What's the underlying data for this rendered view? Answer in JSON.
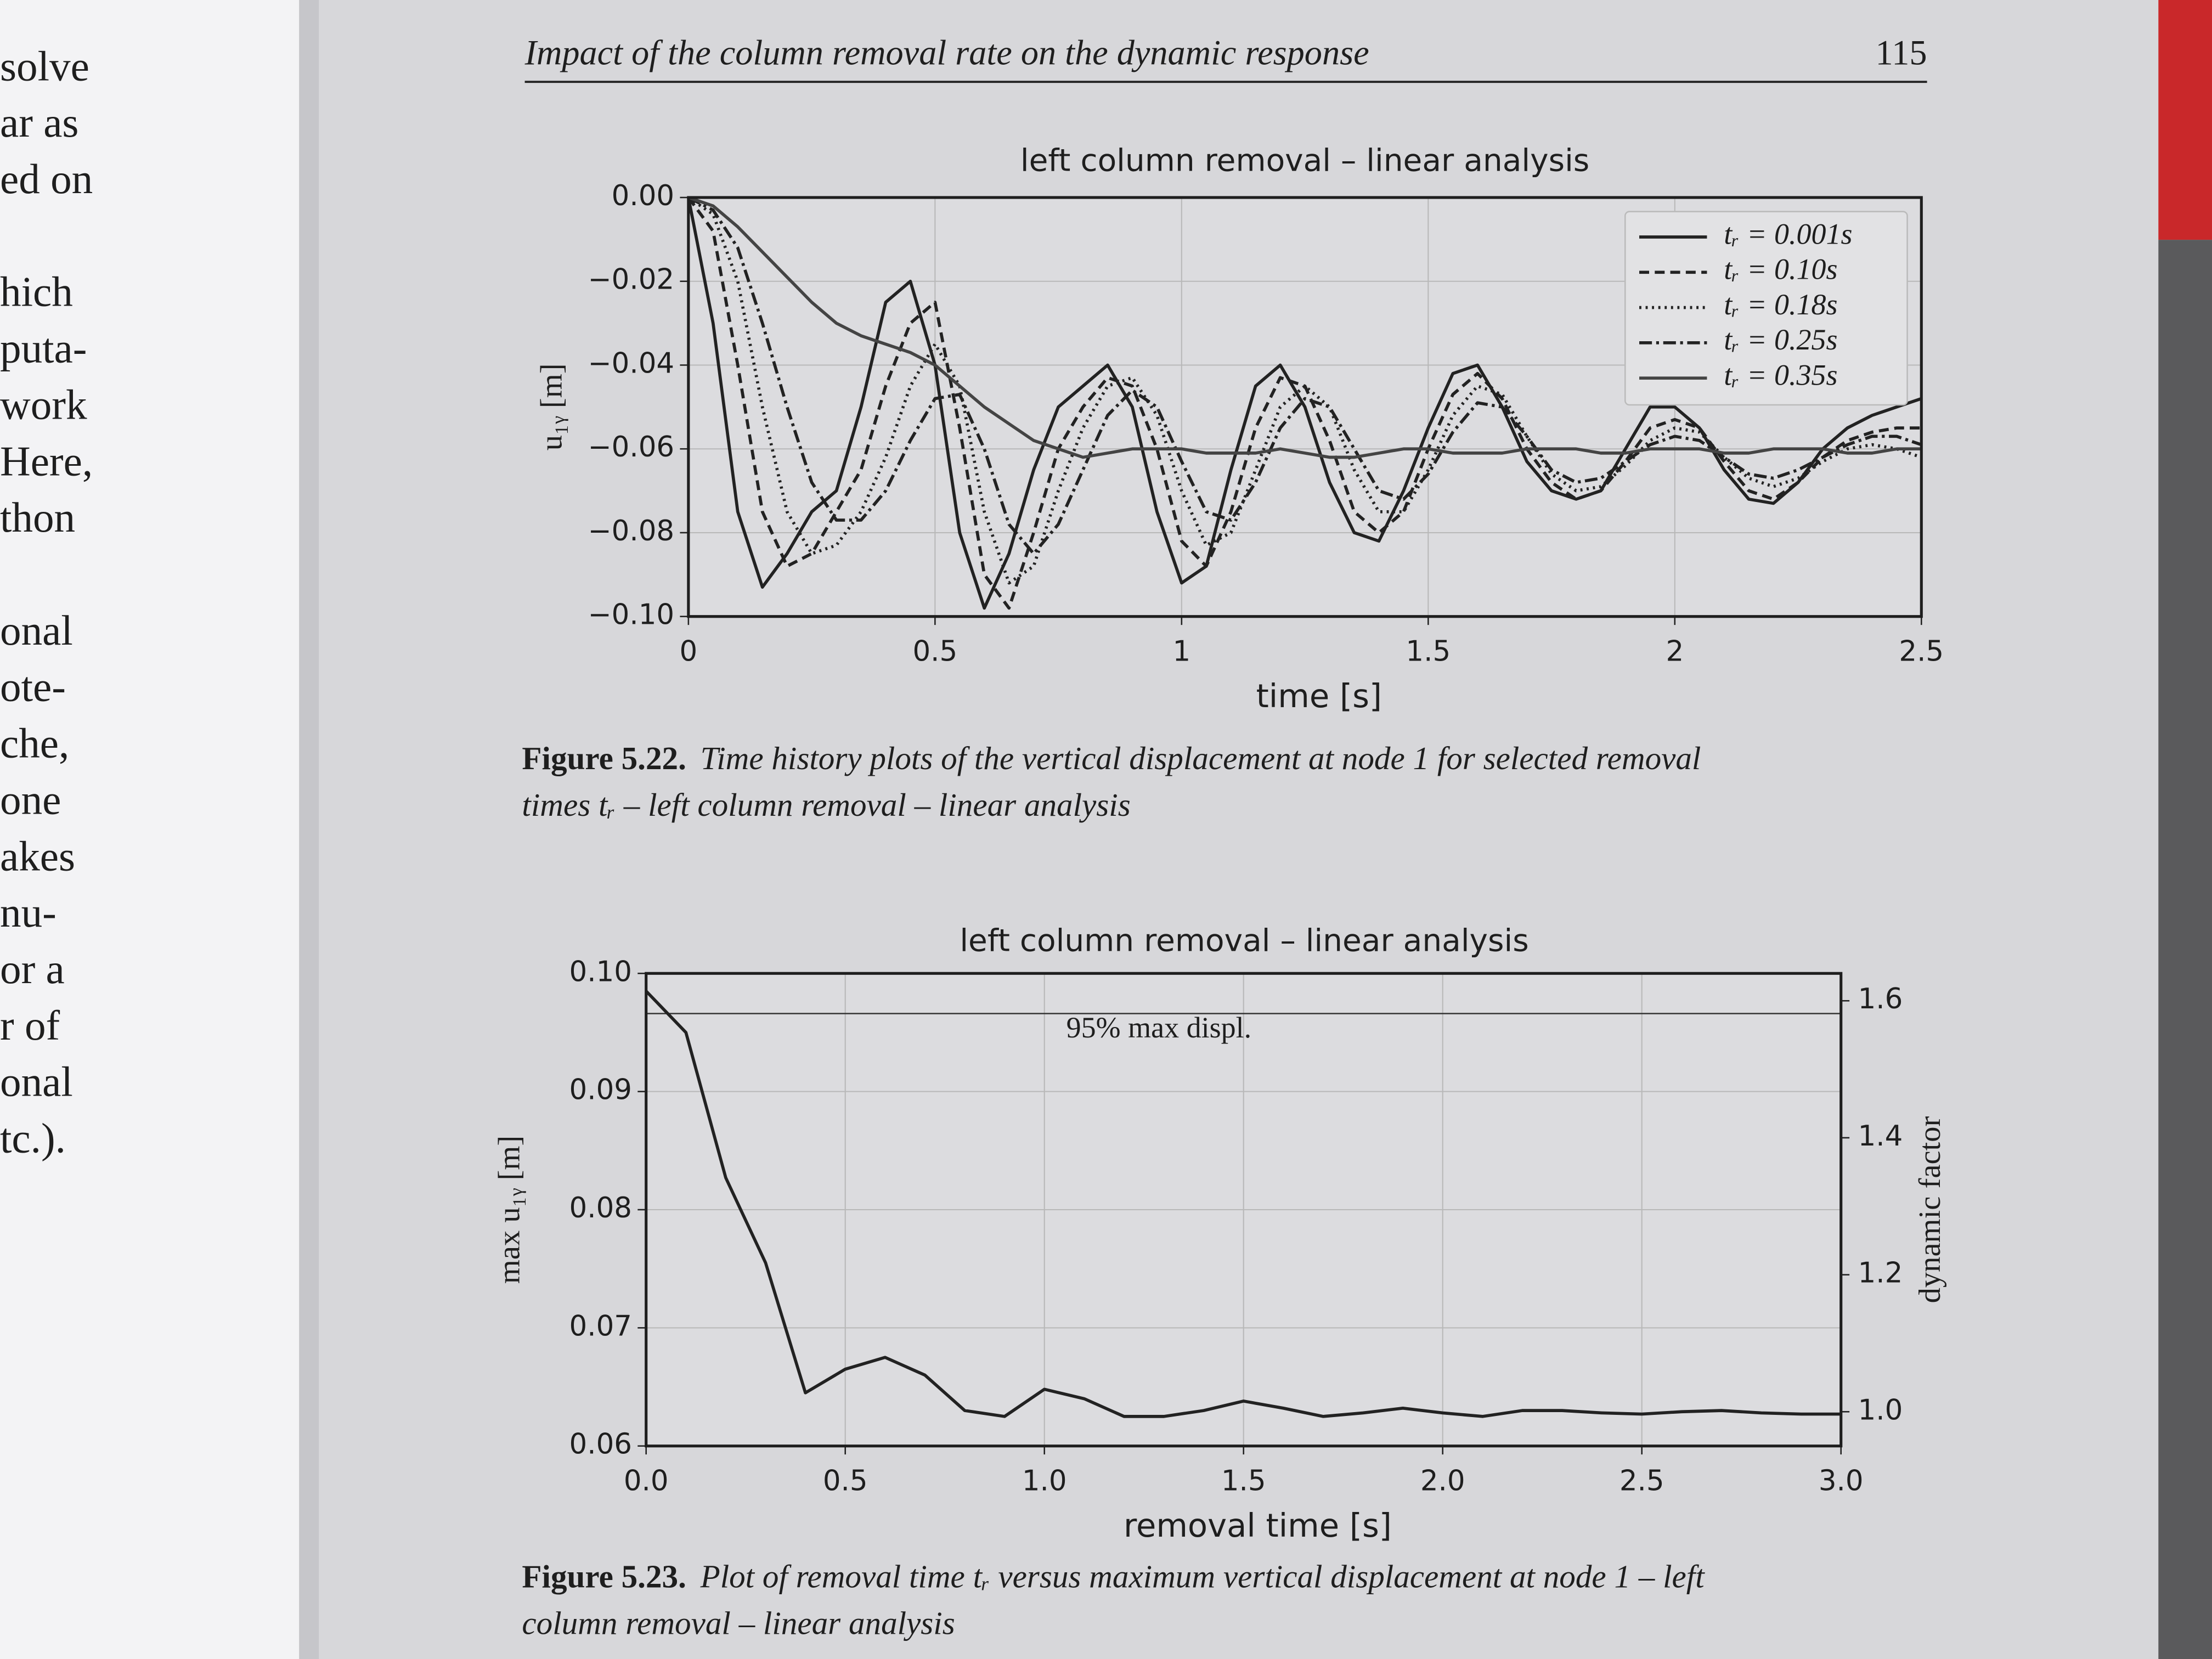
{
  "header": {
    "title": "Impact of the column removal rate on the dynamic response",
    "page_number": "115"
  },
  "left_page": {
    "lines": [
      "solve",
      "ar as",
      "ed on",
      "hich",
      "puta-",
      "work",
      "Here,",
      "thon",
      "onal",
      "ote-",
      "che,",
      "one",
      "akes",
      "nu-",
      "or a",
      "r of",
      "onal",
      "tc.)."
    ]
  },
  "chart_data": [
    {
      "type": "line",
      "title": "left column removal – linear analysis",
      "xlabel": "time [s]",
      "ylabel": "u₁ᵧ [m]",
      "x": [
        0,
        0.05,
        0.1,
        0.15,
        0.2,
        0.25,
        0.3,
        0.35,
        0.4,
        0.45,
        0.5,
        0.55,
        0.6,
        0.65,
        0.7,
        0.75,
        0.8,
        0.85,
        0.9,
        0.95,
        1,
        1.05,
        1.1,
        1.15,
        1.2,
        1.25,
        1.3,
        1.35,
        1.4,
        1.45,
        1.5,
        1.55,
        1.6,
        1.65,
        1.7,
        1.75,
        1.8,
        1.85,
        1.9,
        1.95,
        2,
        2.05,
        2.1,
        2.15,
        2.2,
        2.25,
        2.3,
        2.35,
        2.4,
        2.45,
        2.5
      ],
      "series": [
        {
          "name": "tᵣ = 0.001s",
          "color": "#222222",
          "linestyle": "solid",
          "values": [
            0,
            -0.03,
            -0.075,
            -0.093,
            -0.085,
            -0.075,
            -0.07,
            -0.05,
            -0.025,
            -0.02,
            -0.04,
            -0.08,
            -0.098,
            -0.085,
            -0.065,
            -0.05,
            -0.045,
            -0.04,
            -0.05,
            -0.075,
            -0.092,
            -0.088,
            -0.065,
            -0.045,
            -0.04,
            -0.05,
            -0.068,
            -0.08,
            -0.082,
            -0.07,
            -0.055,
            -0.042,
            -0.04,
            -0.05,
            -0.063,
            -0.07,
            -0.072,
            -0.07,
            -0.06,
            -0.05,
            -0.05,
            -0.055,
            -0.065,
            -0.072,
            -0.073,
            -0.068,
            -0.06,
            -0.055,
            -0.052,
            -0.05,
            -0.048
          ]
        },
        {
          "name": "tᵣ = 0.10s",
          "color": "#222222",
          "linestyle": "dashed",
          "values": [
            0,
            -0.008,
            -0.04,
            -0.075,
            -0.088,
            -0.085,
            -0.075,
            -0.065,
            -0.045,
            -0.03,
            -0.025,
            -0.055,
            -0.09,
            -0.098,
            -0.08,
            -0.06,
            -0.05,
            -0.043,
            -0.045,
            -0.06,
            -0.082,
            -0.088,
            -0.075,
            -0.055,
            -0.043,
            -0.045,
            -0.058,
            -0.075,
            -0.08,
            -0.075,
            -0.06,
            -0.047,
            -0.042,
            -0.048,
            -0.06,
            -0.068,
            -0.072,
            -0.07,
            -0.063,
            -0.055,
            -0.053,
            -0.055,
            -0.063,
            -0.07,
            -0.072,
            -0.068,
            -0.062,
            -0.058,
            -0.056,
            -0.055,
            -0.055
          ]
        },
        {
          "name": "tᵣ = 0.18s",
          "color": "#222222",
          "linestyle": "dotted",
          "values": [
            0,
            -0.004,
            -0.02,
            -0.05,
            -0.075,
            -0.085,
            -0.083,
            -0.075,
            -0.062,
            -0.045,
            -0.035,
            -0.045,
            -0.075,
            -0.092,
            -0.088,
            -0.07,
            -0.055,
            -0.045,
            -0.043,
            -0.052,
            -0.07,
            -0.083,
            -0.08,
            -0.065,
            -0.05,
            -0.045,
            -0.05,
            -0.065,
            -0.075,
            -0.075,
            -0.065,
            -0.052,
            -0.045,
            -0.047,
            -0.057,
            -0.066,
            -0.07,
            -0.069,
            -0.064,
            -0.058,
            -0.055,
            -0.056,
            -0.062,
            -0.067,
            -0.069,
            -0.067,
            -0.063,
            -0.06,
            -0.059,
            -0.06,
            -0.062
          ]
        },
        {
          "name": "tᵣ = 0.25s",
          "color": "#222222",
          "linestyle": "dashdot",
          "values": [
            0,
            -0.003,
            -0.012,
            -0.03,
            -0.05,
            -0.068,
            -0.077,
            -0.077,
            -0.07,
            -0.058,
            -0.048,
            -0.047,
            -0.06,
            -0.078,
            -0.085,
            -0.078,
            -0.065,
            -0.052,
            -0.046,
            -0.05,
            -0.063,
            -0.075,
            -0.077,
            -0.068,
            -0.055,
            -0.048,
            -0.05,
            -0.06,
            -0.07,
            -0.072,
            -0.066,
            -0.056,
            -0.049,
            -0.05,
            -0.057,
            -0.065,
            -0.068,
            -0.067,
            -0.063,
            -0.059,
            -0.057,
            -0.058,
            -0.062,
            -0.066,
            -0.067,
            -0.065,
            -0.062,
            -0.059,
            -0.057,
            -0.057,
            -0.059
          ]
        },
        {
          "name": "tᵣ = 0.35s",
          "color": "#444444",
          "linestyle": "solid",
          "values": [
            0,
            -0.002,
            -0.007,
            -0.013,
            -0.019,
            -0.025,
            -0.03,
            -0.033,
            -0.035,
            -0.037,
            -0.04,
            -0.045,
            -0.05,
            -0.054,
            -0.058,
            -0.06,
            -0.062,
            -0.061,
            -0.06,
            -0.06,
            -0.06,
            -0.061,
            -0.061,
            -0.061,
            -0.06,
            -0.061,
            -0.062,
            -0.062,
            -0.061,
            -0.06,
            -0.06,
            -0.061,
            -0.061,
            -0.061,
            -0.06,
            -0.06,
            -0.06,
            -0.061,
            -0.061,
            -0.06,
            -0.06,
            -0.06,
            -0.061,
            -0.061,
            -0.06,
            -0.06,
            -0.06,
            -0.061,
            -0.061,
            -0.06,
            -0.06
          ]
        }
      ],
      "xlim": [
        0,
        2.5
      ],
      "xticks": [
        0,
        0.5,
        1,
        1.5,
        2,
        2.5
      ],
      "ylim": [
        -0.1,
        0
      ],
      "yticks": [
        {
          "value": 0,
          "label": "0.00"
        },
        {
          "value": -0.02,
          "label": "−0.02"
        },
        {
          "value": -0.04,
          "label": "−0.04"
        },
        {
          "value": -0.06,
          "label": "−0.06"
        },
        {
          "value": -0.08,
          "label": "−0.08"
        },
        {
          "value": -0.1,
          "label": "−0.10"
        }
      ],
      "grid": true,
      "legend": "upper right"
    },
    {
      "type": "line",
      "title": "left column removal – linear analysis",
      "xlabel": "removal time [s]",
      "ylabel": "max u₁ᵧ [m]",
      "y2label": "dynamic factor",
      "x": [
        0,
        0.1,
        0.2,
        0.3,
        0.4,
        0.5,
        0.6,
        0.7,
        0.8,
        0.9,
        1,
        1.1,
        1.2,
        1.3,
        1.4,
        1.5,
        1.6,
        1.7,
        1.8,
        1.9,
        2,
        2.1,
        2.2,
        2.3,
        2.4,
        2.5,
        2.6,
        2.7,
        2.8,
        2.9,
        3
      ],
      "values": [
        0.0985,
        0.095,
        0.0827,
        0.0755,
        0.0645,
        0.0665,
        0.0675,
        0.066,
        0.063,
        0.0625,
        0.0648,
        0.064,
        0.0625,
        0.0625,
        0.063,
        0.0638,
        0.0632,
        0.0625,
        0.0628,
        0.0632,
        0.0628,
        0.0625,
        0.063,
        0.063,
        0.0628,
        0.0627,
        0.0629,
        0.063,
        0.0628,
        0.0627,
        0.0627
      ],
      "color": "#222222",
      "reference_line": {
        "value": 0.0966,
        "label": "95% max displ."
      },
      "xlim": [
        0,
        3
      ],
      "xticks": [
        {
          "value": 0,
          "label": "0.0"
        },
        0.5,
        {
          "value": 1,
          "label": "1.0"
        },
        1.5,
        {
          "value": 2,
          "label": "2.0"
        },
        2.5,
        {
          "value": 3,
          "label": "3.0"
        }
      ],
      "ylim": [
        0.06,
        0.1
      ],
      "yticks": [
        0.06,
        0.07,
        0.08,
        0.09,
        {
          "value": 0.1,
          "label": "0.10"
        }
      ],
      "y2lim": [
        0.95,
        1.64
      ],
      "y2ticks": [
        {
          "value": 1,
          "label": "1.0"
        },
        1.2,
        1.4,
        1.6
      ],
      "grid": true
    }
  ],
  "captions": [
    {
      "label": "Figure 5.22.",
      "lines": [
        "Time history plots of the vertical displacement at node 1 for selected removal",
        "times tᵣ – left column removal – linear analysis"
      ]
    },
    {
      "label": "Figure 5.23.",
      "lines": [
        "Plot of removal time tᵣ versus maximum vertical displacement at node 1 – left",
        "column removal – linear analysis"
      ]
    }
  ]
}
